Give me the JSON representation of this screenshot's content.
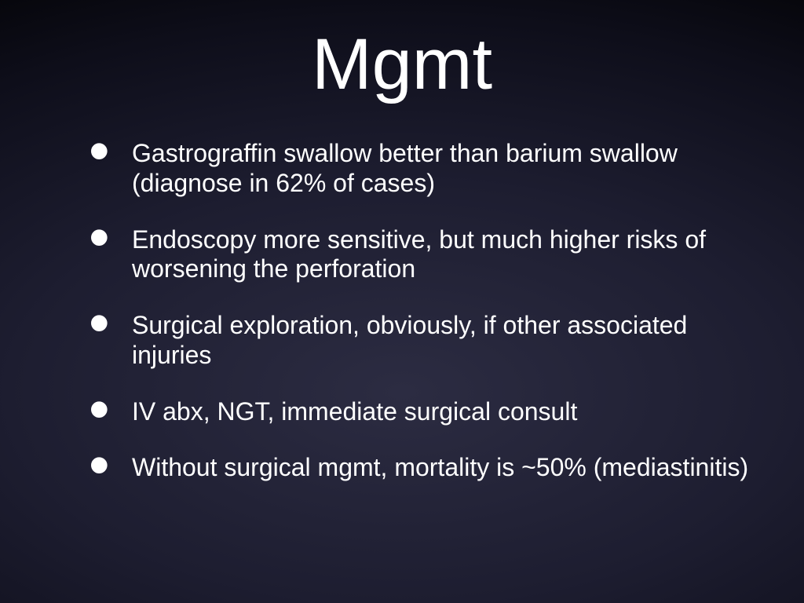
{
  "title": "Mgmt",
  "bullets": [
    {
      "text": "Gastrograffin swallow better than barium swallow (diagnose in 62% of cases)"
    },
    {
      "text": "Endoscopy more sensitive, but much higher risks of worsening the perforation"
    },
    {
      "text": "Surgical exploration, obviously, if other associated injuries"
    },
    {
      "text": "IV abx, NGT, immediate surgical consult"
    },
    {
      "text": "Without surgical mgmt, mortality is ~50% (mediastinitis)"
    }
  ]
}
